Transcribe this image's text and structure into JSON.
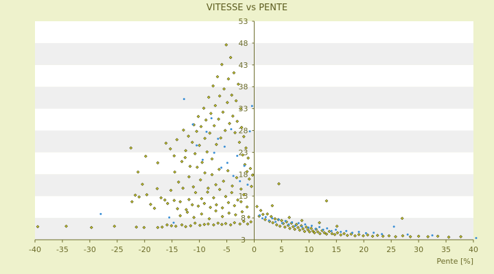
{
  "chart_data": {
    "type": "scatter",
    "title": "VITESSE vs PENTE",
    "xlabel": "Pente [%]",
    "ylabel": "",
    "xlim": [
      -40,
      40
    ],
    "ylim": [
      3,
      53
    ],
    "x_ticks": [
      -40,
      -35,
      -30,
      -25,
      -20,
      -15,
      -10,
      -5,
      0,
      5,
      10,
      15,
      20,
      25,
      30,
      35,
      40
    ],
    "y_ticks": [
      3,
      8,
      13,
      18,
      23,
      28,
      33,
      38,
      43,
      48,
      53
    ],
    "grid": "alternating horizontal bands",
    "legend": "none",
    "colors": {
      "background": "#eef2cc",
      "plot_band_light": "#ffffff",
      "plot_band_dark": "#efefef",
      "series_1": "#c8c830",
      "series_1_edge": "#4a4a10",
      "series_2": "#3a8fd6",
      "axis": "#6b6b2a"
    },
    "series": [
      {
        "color": "#c8c830",
        "points": [
          [
            -39.5,
            6
          ],
          [
            -34.3,
            6.1
          ],
          [
            -29.7,
            5.8
          ],
          [
            -25.5,
            6.1
          ],
          [
            -21.5,
            5.9
          ],
          [
            -20.1,
            5.8
          ],
          [
            -17.6,
            5.8
          ],
          [
            -16.8,
            5.9
          ],
          [
            -15.9,
            6.4
          ],
          [
            -15.1,
            6.2
          ],
          [
            -14.3,
            6.1
          ],
          [
            -13.2,
            6.4
          ],
          [
            -12.5,
            6.0
          ],
          [
            -11.6,
            6.2
          ],
          [
            -10.8,
            6.8
          ],
          [
            -9.9,
            6.3
          ],
          [
            -9.1,
            6.5
          ],
          [
            -8.4,
            6.6
          ],
          [
            -7.4,
            6.4
          ],
          [
            -6.6,
            6.8
          ],
          [
            -5.9,
            6.5
          ],
          [
            -5.2,
            6.7
          ],
          [
            -4.3,
            6.4
          ],
          [
            -3.6,
            6.9
          ],
          [
            -2.6,
            6.6
          ],
          [
            -1.9,
            7.2
          ],
          [
            -1.2,
            6.6
          ],
          [
            -0.6,
            7.1
          ],
          [
            -22.5,
            24
          ],
          [
            -22.3,
            11.7
          ],
          [
            -21.7,
            13.2
          ],
          [
            -21.0,
            12.8
          ],
          [
            -20.4,
            15.7
          ],
          [
            -19.6,
            13.3
          ],
          [
            -18.9,
            11.1
          ],
          [
            -18.2,
            10.2
          ],
          [
            -17.7,
            14.7
          ],
          [
            -17.0,
            12.6
          ],
          [
            -16.3,
            12.1
          ],
          [
            -15.8,
            11.3
          ],
          [
            -15.2,
            14.3
          ],
          [
            -14.6,
            12.0
          ],
          [
            -14.0,
            10.1
          ],
          [
            -13.5,
            11.7
          ],
          [
            -13.0,
            14.8
          ],
          [
            -12.4,
            9.9
          ],
          [
            -11.9,
            12.2
          ],
          [
            -11.3,
            11.0
          ],
          [
            -10.7,
            13.8
          ],
          [
            -10.2,
            10.7
          ],
          [
            -9.6,
            12.4
          ],
          [
            -9.1,
            11.3
          ],
          [
            -8.5,
            13.9
          ],
          [
            -8.0,
            10.4
          ],
          [
            -7.4,
            12.6
          ],
          [
            -6.9,
            11.0
          ],
          [
            -6.3,
            14.5
          ],
          [
            -5.8,
            10.3
          ],
          [
            -5.2,
            12.9
          ],
          [
            -4.7,
            11.5
          ],
          [
            -4.1,
            13.8
          ],
          [
            -3.6,
            10.8
          ],
          [
            -3.0,
            12.1
          ],
          [
            -2.4,
            11.7
          ],
          [
            -1.9,
            13.3
          ],
          [
            -1.3,
            10.5
          ],
          [
            -21.2,
            18.5
          ],
          [
            -19.8,
            22.1
          ],
          [
            -17.6,
            20.6
          ],
          [
            -16.1,
            25.1
          ],
          [
            -15.3,
            23.8
          ],
          [
            -14.6,
            22.2
          ],
          [
            -14.1,
            25.9
          ],
          [
            -13.2,
            20.9
          ],
          [
            -12.9,
            28.1
          ],
          [
            -12.5,
            23.4
          ],
          [
            -12.0,
            26.7
          ],
          [
            -11.7,
            19.8
          ],
          [
            -11.3,
            25.3
          ],
          [
            -11.0,
            29.3
          ],
          [
            -10.8,
            22.7
          ],
          [
            -10.5,
            27.8
          ],
          [
            -10.2,
            31.2
          ],
          [
            -10.0,
            24.6
          ],
          [
            -9.7,
            28.9
          ],
          [
            -9.5,
            20.7
          ],
          [
            -9.2,
            33.1
          ],
          [
            -9.0,
            26.2
          ],
          [
            -8.8,
            30.4
          ],
          [
            -8.6,
            23.1
          ],
          [
            -8.3,
            35.6
          ],
          [
            -8.1,
            27.4
          ],
          [
            -7.9,
            31.9
          ],
          [
            -7.7,
            21.5
          ],
          [
            -7.5,
            38.2
          ],
          [
            -7.3,
            29.1
          ],
          [
            -7.1,
            33.7
          ],
          [
            -6.9,
            24.8
          ],
          [
            -6.7,
            40.3
          ],
          [
            -6.5,
            30.6
          ],
          [
            -6.3,
            35.9
          ],
          [
            -6.1,
            26.3
          ],
          [
            -5.9,
            43.1
          ],
          [
            -5.7,
            32.2
          ],
          [
            -5.5,
            37.5
          ],
          [
            -5.3,
            28.0
          ],
          [
            -5.1,
            47.6
          ],
          [
            -4.9,
            34.4
          ],
          [
            -4.7,
            39.8
          ],
          [
            -4.5,
            29.6
          ],
          [
            -4.3,
            44.7
          ],
          [
            -4.1,
            36.1
          ],
          [
            -3.9,
            31.3
          ],
          [
            -3.7,
            41.2
          ],
          [
            -3.5,
            27.5
          ],
          [
            -3.3,
            34.8
          ],
          [
            -3.1,
            30.1
          ],
          [
            -2.9,
            38.6
          ],
          [
            -2.7,
            25.3
          ],
          [
            -2.5,
            33.0
          ],
          [
            -2.3,
            28.7
          ],
          [
            -2.1,
            22.4
          ],
          [
            -1.9,
            26.6
          ],
          [
            -1.7,
            20.2
          ],
          [
            -1.5,
            24.0
          ],
          [
            -1.3,
            18.6
          ],
          [
            -1.1,
            21.7
          ],
          [
            -0.9,
            16.9
          ],
          [
            -0.7,
            19.3
          ],
          [
            -0.5,
            15.2
          ],
          [
            -0.3,
            17.8
          ],
          [
            -14.5,
            18.5
          ],
          [
            -13.8,
            16.2
          ],
          [
            -12.6,
            21.8
          ],
          [
            -11.9,
            17.4
          ],
          [
            -11.1,
            15.1
          ],
          [
            -10.4,
            19.6
          ],
          [
            -9.8,
            16.7
          ],
          [
            -9.0,
            18.3
          ],
          [
            -8.4,
            14.8
          ],
          [
            -7.7,
            17.9
          ],
          [
            -7.0,
            15.6
          ],
          [
            -6.4,
            19.1
          ],
          [
            -5.6,
            16.4
          ],
          [
            -4.8,
            18.8
          ],
          [
            -4.0,
            15.3
          ],
          [
            -3.2,
            17.2
          ],
          [
            -2.4,
            14.6
          ],
          [
            -13.5,
            8.5
          ],
          [
            -12.2,
            9.3
          ],
          [
            -11.0,
            8.1
          ],
          [
            -9.6,
            8.9
          ],
          [
            -8.2,
            7.8
          ],
          [
            -7.0,
            9.6
          ],
          [
            -5.8,
            8.3
          ],
          [
            -4.6,
            9.1
          ],
          [
            -3.4,
            8.7
          ],
          [
            -2.2,
            9.4
          ],
          [
            -1.0,
            8.2
          ],
          [
            0.5,
            10.6
          ],
          [
            0.9,
            8.4
          ],
          [
            1.2,
            9.7
          ],
          [
            1.6,
            8.8
          ],
          [
            2.0,
            7.6
          ],
          [
            2.4,
            8.9
          ],
          [
            2.8,
            7.2
          ],
          [
            3.1,
            8.3
          ],
          [
            3.4,
            6.9
          ],
          [
            3.8,
            7.8
          ],
          [
            4.1,
            6.4
          ],
          [
            4.4,
            7.6
          ],
          [
            4.7,
            6.1
          ],
          [
            5.0,
            7.4
          ],
          [
            5.3,
            6.7
          ],
          [
            5.6,
            5.9
          ],
          [
            5.9,
            7.1
          ],
          [
            6.2,
            6.3
          ],
          [
            6.5,
            5.6
          ],
          [
            6.8,
            6.8
          ],
          [
            7.1,
            6.0
          ],
          [
            7.4,
            5.4
          ],
          [
            7.7,
            6.5
          ],
          [
            8.0,
            5.8
          ],
          [
            8.3,
            5.2
          ],
          [
            8.6,
            6.2
          ],
          [
            8.9,
            5.5
          ],
          [
            9.2,
            4.9
          ],
          [
            9.5,
            5.9
          ],
          [
            9.8,
            5.3
          ],
          [
            10.1,
            4.8
          ],
          [
            10.4,
            5.6
          ],
          [
            10.7,
            5.0
          ],
          [
            11.0,
            4.6
          ],
          [
            11.3,
            5.4
          ],
          [
            11.6,
            4.8
          ],
          [
            12.0,
            4.4
          ],
          [
            12.4,
            5.1
          ],
          [
            12.8,
            4.6
          ],
          [
            13.2,
            4.3
          ],
          [
            13.7,
            4.9
          ],
          [
            14.2,
            4.4
          ],
          [
            14.7,
            4.2
          ],
          [
            15.2,
            4.6
          ],
          [
            15.8,
            4.1
          ],
          [
            16.4,
            4.4
          ],
          [
            17.0,
            4.0
          ],
          [
            17.7,
            4.3
          ],
          [
            18.4,
            3.9
          ],
          [
            19.1,
            4.2
          ],
          [
            19.9,
            3.9
          ],
          [
            20.7,
            4.1
          ],
          [
            21.6,
            3.8
          ],
          [
            22.5,
            4.0
          ],
          [
            23.5,
            3.8
          ],
          [
            24.6,
            3.9
          ],
          [
            25.8,
            3.7
          ],
          [
            27.1,
            3.9
          ],
          [
            28.5,
            3.7
          ],
          [
            30.0,
            3.8
          ],
          [
            31.7,
            3.7
          ],
          [
            33.5,
            3.8
          ],
          [
            35.5,
            3.6
          ],
          [
            37.7,
            3.7
          ],
          [
            4.5,
            15.8
          ],
          [
            13.2,
            11.9
          ],
          [
            27.0,
            7.9
          ],
          [
            3.3,
            10.8
          ],
          [
            6.4,
            8.1
          ],
          [
            8.7,
            7.4
          ],
          [
            11.9,
            6.9
          ],
          [
            15.1,
            6.1
          ]
        ]
      },
      {
        "color": "#3a8fd6",
        "points": [
          [
            -28,
            8.9
          ],
          [
            -15.5,
            8.1
          ],
          [
            -14.7,
            6.9
          ],
          [
            -12.8,
            35.2
          ],
          [
            -11.2,
            29.4
          ],
          [
            -10.5,
            24.6
          ],
          [
            -9.4,
            21.3
          ],
          [
            -8.7,
            27.7
          ],
          [
            -7.8,
            30.8
          ],
          [
            -7.3,
            22.9
          ],
          [
            -6.6,
            26.1
          ],
          [
            -6.0,
            19.5
          ],
          [
            -5.4,
            24.3
          ],
          [
            -4.9,
            20.6
          ],
          [
            -4.2,
            28.3
          ],
          [
            -3.8,
            17.6
          ],
          [
            -3.1,
            22.2
          ],
          [
            -2.6,
            16.4
          ],
          [
            -1.8,
            19.9
          ],
          [
            -1.2,
            15.6
          ],
          [
            -0.8,
            27.8
          ],
          [
            -0.4,
            33.6
          ],
          [
            1.0,
            8.6
          ],
          [
            1.5,
            7.9
          ],
          [
            2.1,
            8.2
          ],
          [
            2.7,
            7.4
          ],
          [
            3.3,
            7.9
          ],
          [
            3.9,
            7.1
          ],
          [
            4.5,
            7.6
          ],
          [
            5.1,
            6.8
          ],
          [
            5.7,
            7.3
          ],
          [
            6.3,
            6.5
          ],
          [
            6.9,
            7.0
          ],
          [
            7.5,
            6.2
          ],
          [
            8.1,
            6.8
          ],
          [
            8.7,
            6.0
          ],
          [
            9.3,
            6.5
          ],
          [
            9.9,
            5.8
          ],
          [
            10.5,
            6.2
          ],
          [
            11.2,
            5.5
          ],
          [
            11.9,
            5.9
          ],
          [
            12.6,
            5.3
          ],
          [
            13.3,
            5.6
          ],
          [
            14.1,
            5.0
          ],
          [
            14.9,
            5.3
          ],
          [
            15.8,
            4.8
          ],
          [
            16.8,
            5.0
          ],
          [
            17.9,
            4.6
          ],
          [
            19.1,
            4.8
          ],
          [
            20.4,
            4.5
          ],
          [
            21.8,
            4.6
          ],
          [
            23.3,
            4.3
          ],
          [
            25.5,
            6.0
          ],
          [
            28.0,
            4.2
          ],
          [
            32.5,
            4.0
          ],
          [
            40.5,
            3.4
          ]
        ]
      }
    ]
  }
}
